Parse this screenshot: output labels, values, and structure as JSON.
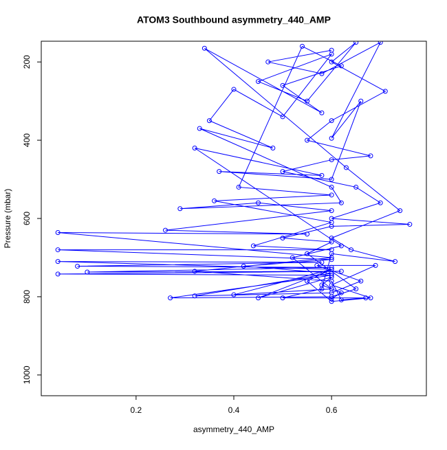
{
  "chart_data": {
    "type": "line",
    "title": "ATOM3 Southbound asymmetry_440_AMP",
    "x_label": "asymmetry_440_AMP",
    "y_label": "Pressure (mbar)",
    "xlim": [
      0.006,
      0.794
    ],
    "xticks": [
      0.2,
      0.4,
      0.6
    ],
    "ylim": [
      1053,
      147
    ],
    "yticks": [
      200,
      400,
      600,
      800,
      1000
    ],
    "series": [
      {
        "color": "#0000ff",
        "x": [
          0.6,
          0.62,
          0.58,
          0.6,
          0.45,
          0.6,
          0.04,
          0.58,
          0.08,
          0.6,
          0.1,
          0.62,
          0.04,
          0.6,
          0.27,
          0.6,
          0.65,
          0.55,
          0.6,
          0.5,
          0.6,
          0.76,
          0.6,
          0.7,
          0.65,
          0.5,
          0.6,
          0.68,
          0.55,
          0.6,
          0.71,
          0.6,
          0.65,
          0.55,
          0.45,
          0.6,
          0.5,
          0.4,
          0.35,
          0.48,
          0.33,
          0.6,
          0.62,
          0.29,
          0.45,
          0.6,
          0.26,
          0.55,
          0.04,
          0.6,
          0.32,
          0.6,
          0.62,
          0.67,
          0.5,
          0.58,
          0.6,
          0.73,
          0.64,
          0.6,
          0.74,
          0.63,
          0.34,
          0.58,
          0.5,
          0.62,
          0.54,
          0.41,
          0.6,
          0.36,
          0.6,
          0.44,
          0.6,
          0.04,
          0.6,
          0.42,
          0.6,
          0.32,
          0.6,
          0.66,
          0.57,
          0.69,
          0.6,
          0.68,
          0.6,
          0.55,
          0.6,
          0.4,
          0.6,
          0.52,
          0.62,
          0.32,
          0.58,
          0.37,
          0.6,
          0.66,
          0.6,
          0.7,
          0.58,
          0.47,
          0.6
        ],
        "values": [
          805,
          790,
          770,
          750,
          803,
          730,
          710,
          712,
          722,
          725,
          737,
          735,
          742,
          745,
          803,
          800,
          780,
          690,
          660,
          650,
          620,
          615,
          600,
          560,
          520,
          480,
          450,
          440,
          400,
          350,
          275,
          200,
          150,
          300,
          250,
          180,
          340,
          270,
          350,
          420,
          370,
          520,
          560,
          575,
          560,
          580,
          630,
          640,
          636,
          700,
          735,
          760,
          808,
          803,
          803,
          780,
          690,
          710,
          680,
          650,
          580,
          470,
          165,
          330,
          260,
          210,
          160,
          520,
          540,
          555,
          610,
          670,
          680,
          680,
          705,
          722,
          740,
          798,
          790,
          760,
          720,
          720,
          770,
          803,
          812,
          760,
          730,
          795,
          780,
          700,
          670,
          420,
          490,
          480,
          500,
          300,
          395,
          150,
          230,
          200,
          170
        ]
      }
    ]
  }
}
